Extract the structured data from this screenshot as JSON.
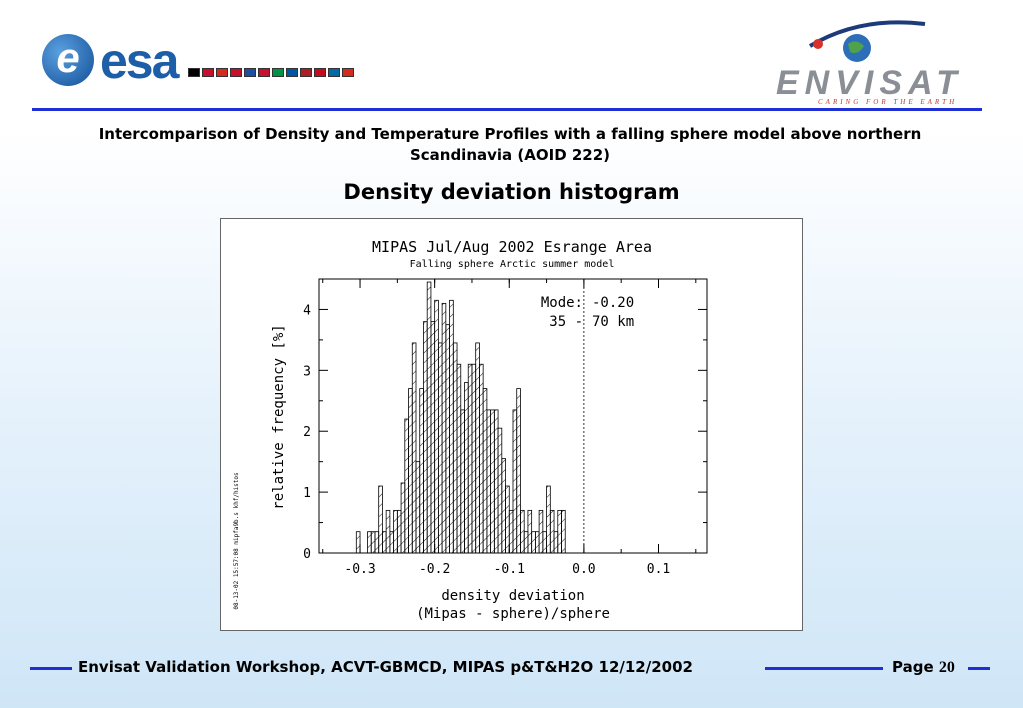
{
  "header": {
    "esa_logo": "esa",
    "envisat_logo": "ENVISAT",
    "envisat_tagline": "CARING FOR THE EARTH",
    "flags": [
      "#000000",
      "#c8102e",
      "#d52b1e",
      "#c8102e",
      "#1e4fa0",
      "#c8102e",
      "#009246",
      "#0055a4",
      "#ae1c28",
      "#c60b1e",
      "#006aa7",
      "#d52b1e"
    ]
  },
  "subtitle_line1": "Intercomparison of Density and Temperature Profiles with a falling sphere model above northern",
  "subtitle_line2": "Scandinavia (AOID 222)",
  "title": "Density deviation histogram",
  "chart_data": {
    "type": "bar",
    "title": "MIPAS Jul/Aug 2002 Esrange Area",
    "subtitle": "Falling sphere Arctic summer model",
    "xlabel": "density deviation",
    "xlabel2": "(Mipas - sphere)/sphere",
    "ylabel": "relative frequency [%]",
    "xlim": [
      -0.355,
      0.165
    ],
    "ylim": [
      0,
      4.5
    ],
    "xticks": [
      -0.3,
      -0.2,
      -0.1,
      0.0,
      0.1
    ],
    "xtick_labels": [
      "-0.3",
      "-0.2",
      "-0.1",
      "0.0",
      "0.1"
    ],
    "yticks": [
      0,
      1,
      2,
      3,
      4
    ],
    "ytick_labels": [
      "0",
      "1",
      "2",
      "3",
      "4"
    ],
    "bin_width": 0.005,
    "bins_start": -0.305,
    "values": [
      0.35,
      0,
      0,
      0.35,
      0.35,
      0.35,
      1.1,
      0.35,
      0.7,
      0.35,
      0.7,
      0.7,
      1.15,
      2.2,
      2.7,
      3.45,
      1.5,
      2.7,
      3.8,
      4.45,
      3.8,
      4.15,
      3.45,
      4.1,
      3.75,
      4.15,
      3.45,
      3.1,
      2.35,
      2.8,
      3.1,
      3.1,
      3.45,
      3.1,
      2.7,
      2.35,
      2.35,
      2.35,
      2.05,
      1.55,
      1.1,
      0.7,
      2.35,
      2.7,
      0.7,
      0.35,
      0.7,
      0.35,
      0.35,
      0.7,
      0.35,
      1.1,
      0.7,
      0.35,
      0.7,
      0.7
    ],
    "mode_label": "Mode:",
    "mode_value": "-0.20",
    "range_label": "35 -",
    "range_value": "70 km",
    "mode_line_x": 0.0,
    "side_label": "08-13-02 15:57:08 mipfa9b.s  khf/histos"
  },
  "footer": {
    "text": "Envisat Validation Workshop, ACVT-GBMCD,  MIPAS p&T&H2O 12/12/2002",
    "page_label": "Page",
    "page_number": "20"
  }
}
